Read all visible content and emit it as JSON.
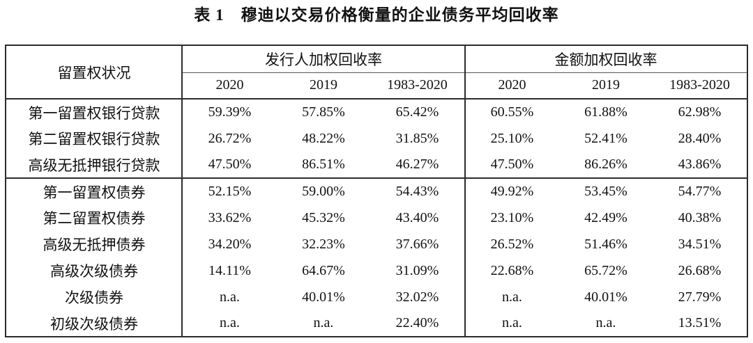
{
  "title": "表 1　穆迪以交易价格衡量的企业债务平均回收率",
  "colors": {
    "background": "#ffffff",
    "text": "#111111",
    "border": "#2b2b2b"
  },
  "table": {
    "lien_header": "留置权状况",
    "groups": [
      {
        "label": "发行人加权回收率",
        "years": [
          "2020",
          "2019",
          "1983-2020"
        ]
      },
      {
        "label": "金额加权回收率",
        "years": [
          "2020",
          "2019",
          "1983-2020"
        ]
      }
    ],
    "row_groups": [
      {
        "rows": [
          {
            "label": "第一留置权银行贷款",
            "values": [
              "59.39%",
              "57.85%",
              "65.42%",
              "60.55%",
              "61.88%",
              "62.98%"
            ]
          },
          {
            "label": "第二留置权银行贷款",
            "values": [
              "26.72%",
              "48.22%",
              "31.85%",
              "25.10%",
              "52.41%",
              "28.40%"
            ]
          },
          {
            "label": "高级无抵押银行贷款",
            "values": [
              "47.50%",
              "86.51%",
              "46.27%",
              "47.50%",
              "86.26%",
              "43.86%"
            ]
          }
        ]
      },
      {
        "rows": [
          {
            "label": "第一留置权债券",
            "values": [
              "52.15%",
              "59.00%",
              "54.43%",
              "49.92%",
              "53.45%",
              "54.77%"
            ]
          },
          {
            "label": "第二留置权债券",
            "values": [
              "33.62%",
              "45.32%",
              "43.40%",
              "23.10%",
              "42.49%",
              "40.38%"
            ]
          },
          {
            "label": "高级无抵押债券",
            "values": [
              "34.20%",
              "32.23%",
              "37.66%",
              "26.52%",
              "51.46%",
              "34.51%"
            ]
          },
          {
            "label": "高级次级债券",
            "values": [
              "14.11%",
              "64.67%",
              "31.09%",
              "22.68%",
              "65.72%",
              "26.68%"
            ]
          },
          {
            "label": "次级债券",
            "values": [
              "n.a.",
              "40.01%",
              "32.02%",
              "n.a.",
              "40.01%",
              "27.79%"
            ]
          },
          {
            "label": "初级次级债券",
            "values": [
              "n.a.",
              "n.a.",
              "22.40%",
              "n.a.",
              "n.a.",
              "13.51%"
            ]
          }
        ]
      }
    ]
  }
}
